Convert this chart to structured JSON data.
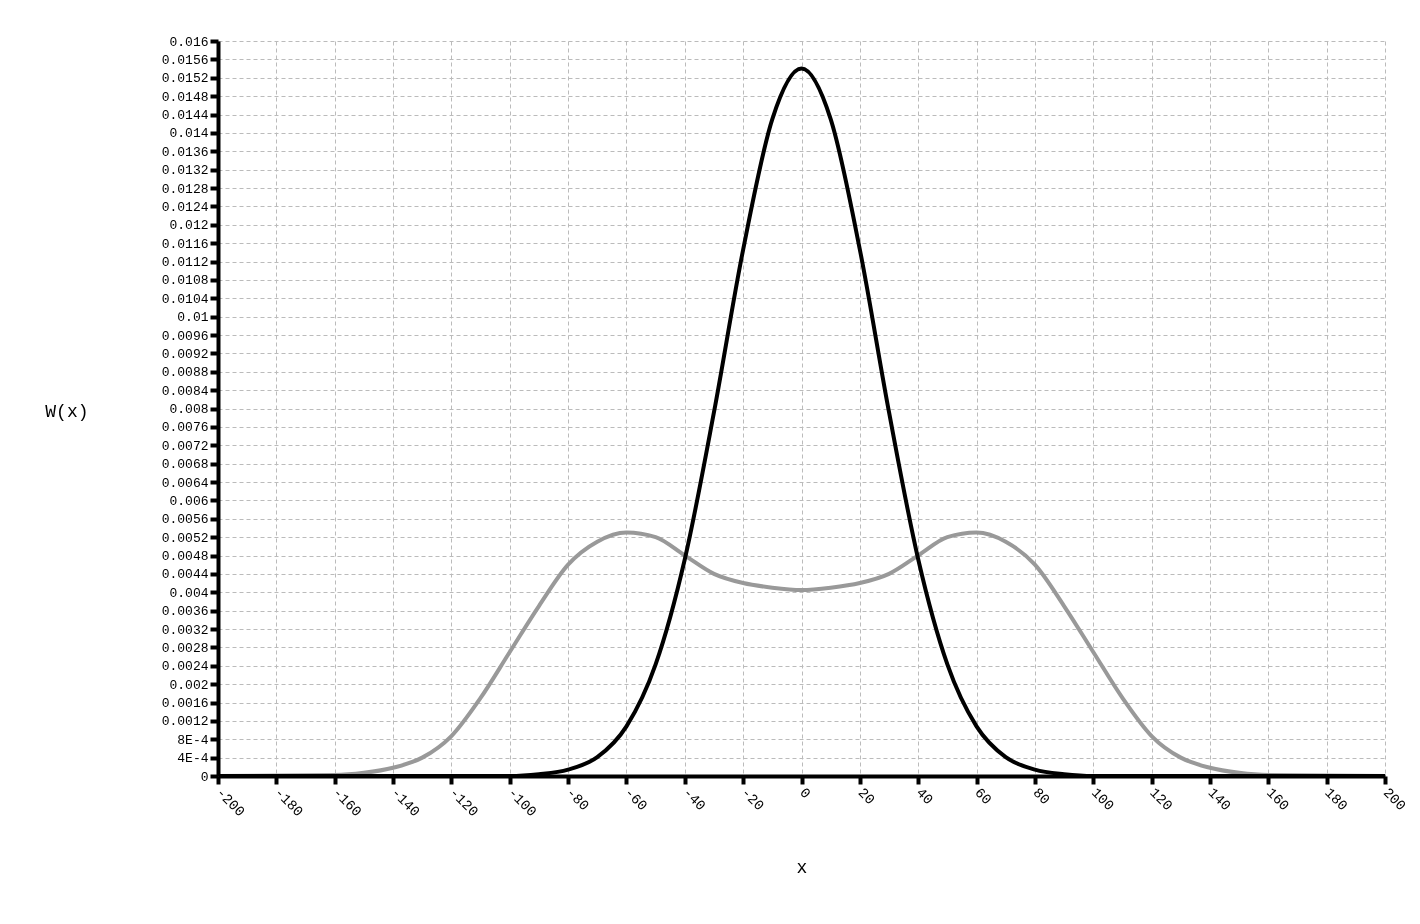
{
  "chart_data": {
    "type": "line",
    "xlabel": "x",
    "ylabel": "W(x)",
    "xlim": [
      -200,
      200
    ],
    "ylim": [
      0,
      0.016
    ],
    "xticks": [
      -200,
      -180,
      -160,
      -140,
      -120,
      -100,
      -80,
      -60,
      -40,
      -20,
      0,
      20,
      40,
      60,
      80,
      100,
      120,
      140,
      160,
      180,
      200
    ],
    "yticks": [
      0,
      {
        "value": 0.0004,
        "label": "4E-4"
      },
      {
        "value": 0.0008,
        "label": "8E-4"
      },
      0.0012,
      0.0016,
      0.002,
      0.0024,
      0.0028,
      0.0032,
      0.0036,
      0.004,
      0.0044,
      0.0048,
      0.0052,
      0.0056,
      0.006,
      0.0064,
      0.0068,
      0.0072,
      0.0076,
      0.008,
      0.0084,
      0.0088,
      0.0092,
      0.0096,
      0.01,
      0.0104,
      0.0108,
      0.0112,
      0.0116,
      0.012,
      0.0124,
      0.0128,
      0.0132,
      0.0136,
      0.014,
      0.0144,
      0.0148,
      0.0152,
      0.0156,
      0.016
    ],
    "grid": true,
    "line_style": "solid",
    "series": [
      {
        "color": "#999999",
        "x": [
          -200,
          -160,
          -150,
          -140,
          -130,
          -120,
          -110,
          -100,
          -90,
          -80,
          -70,
          -60,
          -50,
          -40,
          -30,
          -20,
          -10,
          0,
          10,
          20,
          30,
          40,
          50,
          60,
          70,
          80,
          90,
          100,
          110,
          120,
          130,
          140,
          150,
          160,
          200
        ],
        "values": [
          0,
          2e-05,
          7e-05,
          0.00018,
          0.0004,
          0.00087,
          0.0017,
          0.0027,
          0.0037,
          0.0046,
          0.0051,
          0.0053,
          0.0052,
          0.0048,
          0.0044,
          0.0042,
          0.0041,
          0.00405,
          0.0041,
          0.0042,
          0.0044,
          0.0048,
          0.0052,
          0.0053,
          0.0051,
          0.0046,
          0.0037,
          0.0027,
          0.0017,
          0.00087,
          0.0004,
          0.00018,
          7e-05,
          2e-05,
          0
        ]
      },
      {
        "color": "#000000",
        "x": [
          -200,
          -100,
          -90,
          -80,
          -70,
          -60,
          -50,
          -40,
          -30,
          -20,
          -10,
          0,
          10,
          20,
          30,
          40,
          50,
          60,
          70,
          80,
          90,
          100,
          200
        ],
        "values": [
          0,
          0,
          4e-05,
          0.00014,
          0.00041,
          0.00108,
          0.00243,
          0.00472,
          0.00792,
          0.01146,
          0.0143,
          0.0154,
          0.0143,
          0.01146,
          0.00792,
          0.00472,
          0.00243,
          0.00108,
          0.00041,
          0.00014,
          4e-05,
          0,
          0
        ]
      }
    ]
  }
}
